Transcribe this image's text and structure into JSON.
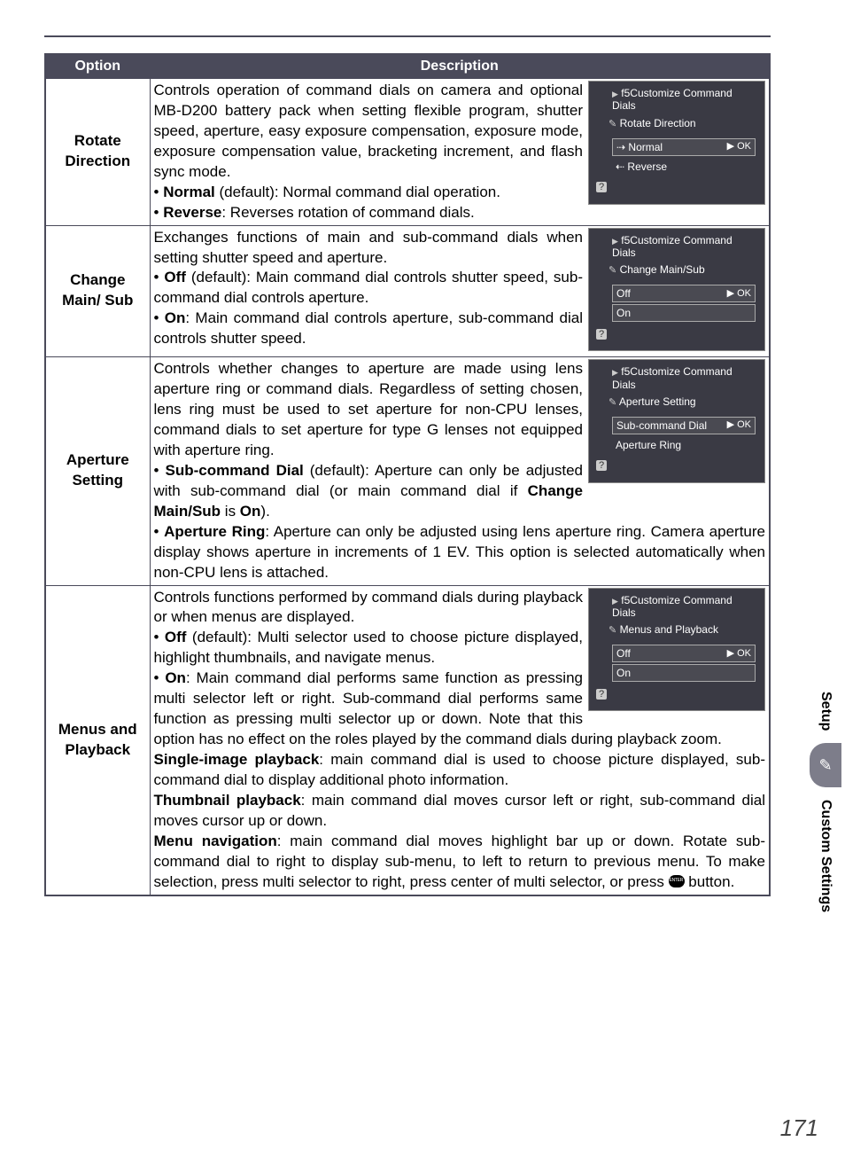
{
  "header": {
    "option": "Option",
    "description": "Description"
  },
  "rows": [
    {
      "option": "Rotate Direction",
      "intro": "Controls operation of command dials on camera and optional MB-D200 battery pack when setting flexible program, shutter speed, aperture, easy exposure compensation, exposure mode, exposure compensation value, bracketing increment, and flash sync mode.",
      "bullets": [
        {
          "label": "Normal",
          "suffix": " (default): Normal command dial operation."
        },
        {
          "label": "Reverse",
          "suffix": ": Reverses rotation of command dials."
        }
      ],
      "screenshot": {
        "title1": "f5Customize Command",
        "title2": "Dials",
        "sub": "Rotate Direction",
        "opts": [
          {
            "icon": "⇢",
            "label": "Normal",
            "ok": "▶ OK"
          },
          {
            "icon": "⇠",
            "label": "Reverse",
            "ok": ""
          }
        ]
      }
    },
    {
      "option": "Change Main/ Sub",
      "intro": "Exchanges functions of main and sub-command dials when setting shutter speed and aperture.",
      "bullets": [
        {
          "label": "Off",
          "suffix": " (default): Main command dial controls shutter speed, sub-command dial controls aperture."
        },
        {
          "label": "On",
          "suffix": ": Main command dial controls aperture, sub-command dial controls shutter speed."
        }
      ],
      "screenshot": {
        "title1": "f5Customize Command",
        "title2": "Dials",
        "sub": "Change Main/Sub",
        "opts": [
          {
            "icon": "",
            "label": "Off",
            "ok": "▶ OK"
          },
          {
            "icon": "",
            "label": "On",
            "ok": ""
          }
        ]
      }
    },
    {
      "option": "Aperture Setting",
      "intro": "Controls whether changes to aperture are made using lens aperture ring or command dials.  Regardless of setting chosen, lens ring must be used to set aperture for non-CPU lenses, command dials to set aperture for type G lenses not equipped with aperture ring.",
      "bullets": [
        {
          "label": "Sub-command Dial",
          "suffix": " (default): Aperture can only be adjusted with sub-command dial (or main command dial if ",
          "trail_bold": "Change Main/Sub",
          "trail": " is ",
          "trail_bold2": "On",
          "trail2": ")."
        },
        {
          "label": "Aperture Ring",
          "suffix": ": Aperture can only be adjusted using lens aperture ring. Camera aperture display shows aperture in increments of 1 EV.  This option is selected automatically when non-CPU lens is attached."
        }
      ],
      "screenshot": {
        "title1": "f5Customize Command",
        "title2": "Dials",
        "sub": "Aperture Setting",
        "opts": [
          {
            "icon": "",
            "label": "Sub-command Dial",
            "ok": "▶ OK"
          },
          {
            "icon": "",
            "label": "Aperture Ring",
            "ok": ""
          }
        ]
      }
    },
    {
      "option": "Menus and Playback",
      "intro": "Controls functions performed by command dials during playback or when menus are displayed.",
      "bullets": [
        {
          "label": "Off",
          "suffix": " (default): Multi selector used to choose picture displayed, highlight thumbnails, and navigate menus."
        },
        {
          "label": "On",
          "suffix": ": Main command dial performs same function as pressing multi selector left or right.  Sub-command dial performs same function as pressing multi selector up or down.  Note that this option has no effect on the roles played by the command dials during playback zoom."
        }
      ],
      "para": [
        {
          "lead": "Single-image playback",
          "text": ": main command dial is used to choose picture displayed, sub-command dial to display additional photo information."
        },
        {
          "lead": "Thumbnail playback",
          "text": ": main command dial moves cursor left or right, sub-command dial moves cursor up or down."
        },
        {
          "lead": "Menu navigation",
          "text": ": main command dial moves highlight bar up or down. Rotate sub-command dial to right to display sub-menu, to left to return to previous menu.  To make selection, press multi selector to right, press center of multi selector, or press ",
          "button": true,
          "text2": " button."
        }
      ],
      "screenshot": {
        "title1": "f5Customize Command",
        "title2": "Dials",
        "sub": "Menus and Playback",
        "opts": [
          {
            "icon": "",
            "label": "Off",
            "ok": "▶ OK"
          },
          {
            "icon": "",
            "label": "On",
            "ok": ""
          }
        ]
      }
    }
  ],
  "side": {
    "setup": "Setup",
    "custom": "Custom Settings"
  },
  "pageNumber": "171",
  "colors": {
    "header_bg": "#4a4a5a",
    "border": "#4a4a5a",
    "screenshot_bg": "#3a3a44",
    "side_badge": "#7d7d8a"
  }
}
